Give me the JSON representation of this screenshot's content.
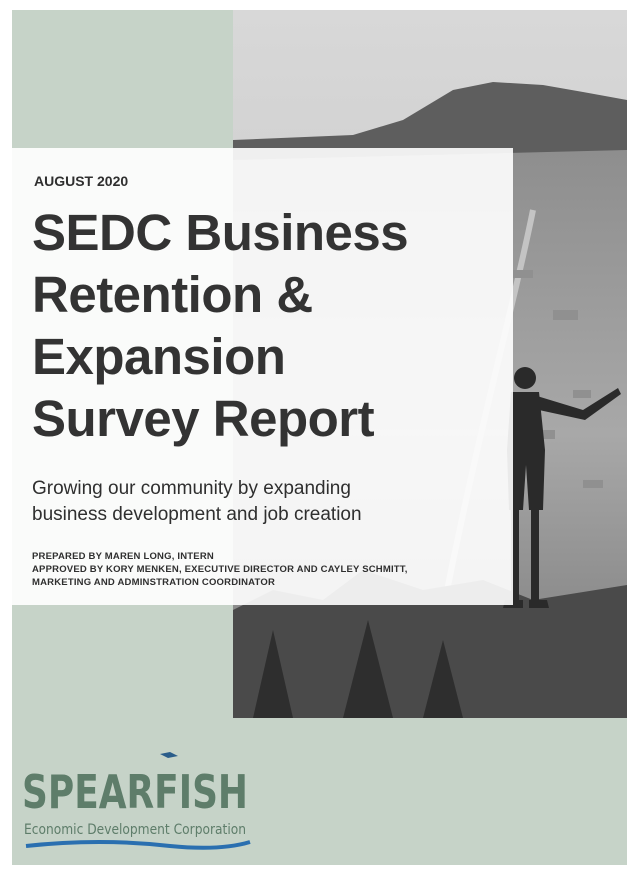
{
  "header": {
    "date": "AUGUST 2020",
    "title_lines": [
      "SEDC Business",
      "Retention &",
      "Expansion",
      "Survey Report"
    ],
    "subtitle_lines": [
      "Growing our community by expanding",
      "business development and job creation"
    ],
    "credits": [
      "PREPARED BY MAREN LONG, INTERN",
      "APPROVED BY KORY MENKEN, EXECUTIVE DIRECTOR AND CAYLEY SCHMITT,",
      "MARKETING AND ADMINSTRATION COORDINATOR"
    ]
  },
  "logo": {
    "name": "SPEARFISH",
    "tagline": "Economic Development Corporation"
  }
}
